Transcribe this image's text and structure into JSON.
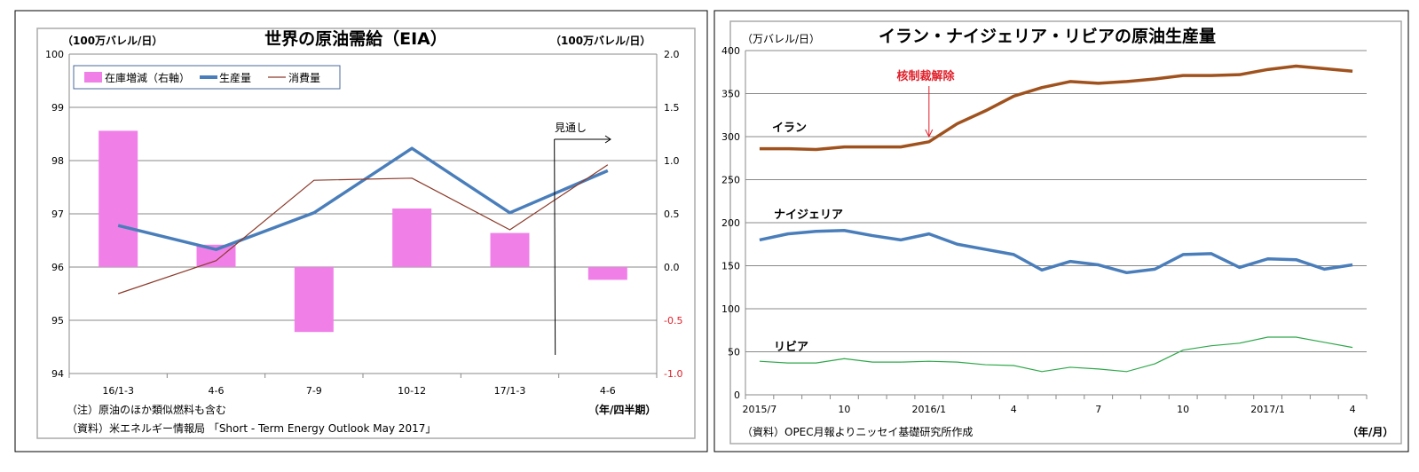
{
  "chart_data": [
    {
      "type": "bar+line",
      "title": "世界の原油需給（EIA）",
      "ylabel_left": "（100万バレル/日）",
      "ylabel_right": "（100万バレル/日）",
      "xlabel": "（年/四半期）",
      "categories": [
        "16/1-3",
        "4-6",
        "7-9",
        "10-12",
        "17/1-3",
        "4-6"
      ],
      "ylim_left": [
        94,
        100
      ],
      "yticks_left": [
        "94",
        "95",
        "96",
        "97",
        "98",
        "99",
        "100"
      ],
      "ylim_right": [
        -1.0,
        2.0
      ],
      "yticks_right": [
        "-1.0",
        "-0.5",
        "0.0",
        "0.5",
        "1.0",
        "1.5",
        "2.0"
      ],
      "grid": true,
      "legend_position": "top-left",
      "series": [
        {
          "name": "在庫増減（右軸）",
          "type": "bar",
          "axis": "right",
          "color": "#f080e8",
          "values": [
            1.28,
            0.21,
            -0.61,
            0.55,
            0.32,
            -0.12
          ]
        },
        {
          "name": "生産量",
          "type": "line",
          "axis": "left",
          "color": "#4a7ebb",
          "values": [
            96.78,
            96.33,
            97.02,
            98.23,
            97.02,
            97.81
          ]
        },
        {
          "name": "消費量",
          "type": "line",
          "axis": "left",
          "color": "#8b3a2a",
          "values": [
            95.5,
            96.12,
            97.63,
            97.67,
            96.7,
            97.92
          ]
        }
      ],
      "annotations": {
        "forecast": "見通し"
      },
      "notes": [
        "（注）原油のほか類似燃料も含む",
        "（資料）米エネルギー情報局 「Short - Term Energy Outlook May 2017」"
      ]
    },
    {
      "type": "line",
      "title": "イラン・ナイジェリア・リビアの原油生産量",
      "ylabel": "（万バレル/日）",
      "xlabel": "（年/月）",
      "ylim": [
        0,
        400
      ],
      "yticks": [
        "0",
        "50",
        "100",
        "150",
        "200",
        "250",
        "300",
        "350",
        "400"
      ],
      "xtick_labels": [
        {
          "index": 0,
          "label": "2015/7"
        },
        {
          "index": 3,
          "label": "10"
        },
        {
          "index": 6,
          "label": "2016/1"
        },
        {
          "index": 9,
          "label": "4"
        },
        {
          "index": 12,
          "label": "7"
        },
        {
          "index": 15,
          "label": "10"
        },
        {
          "index": 18,
          "label": "2017/1"
        },
        {
          "index": 21,
          "label": "4"
        }
      ],
      "grid": true,
      "series": [
        {
          "name": "イラン",
          "color": "#a0521e",
          "values": [
            286,
            286,
            285,
            288,
            288,
            288,
            294,
            315,
            330,
            347,
            357,
            364,
            362,
            364,
            367,
            371,
            371,
            372,
            378,
            382,
            379,
            376
          ]
        },
        {
          "name": "ナイジェリア",
          "color": "#4a7ebb",
          "values": [
            180,
            187,
            190,
            191,
            185,
            180,
            187,
            175,
            169,
            163,
            145,
            155,
            151,
            142,
            146,
            163,
            164,
            148,
            158,
            157,
            146,
            151
          ]
        },
        {
          "name": "リビア",
          "color": "#2ea84a",
          "values": [
            39,
            37,
            37,
            42,
            38,
            38,
            39,
            38,
            35,
            34,
            27,
            32,
            30,
            27,
            36,
            52,
            57,
            60,
            67,
            67,
            61,
            55
          ]
        }
      ],
      "annotations": {
        "event": "核制裁解除",
        "event_index": 6,
        "event_color": "#e0202a"
      },
      "notes": [
        "（資料）OPEC月報よりニッセイ基礎研究所作成"
      ]
    }
  ]
}
